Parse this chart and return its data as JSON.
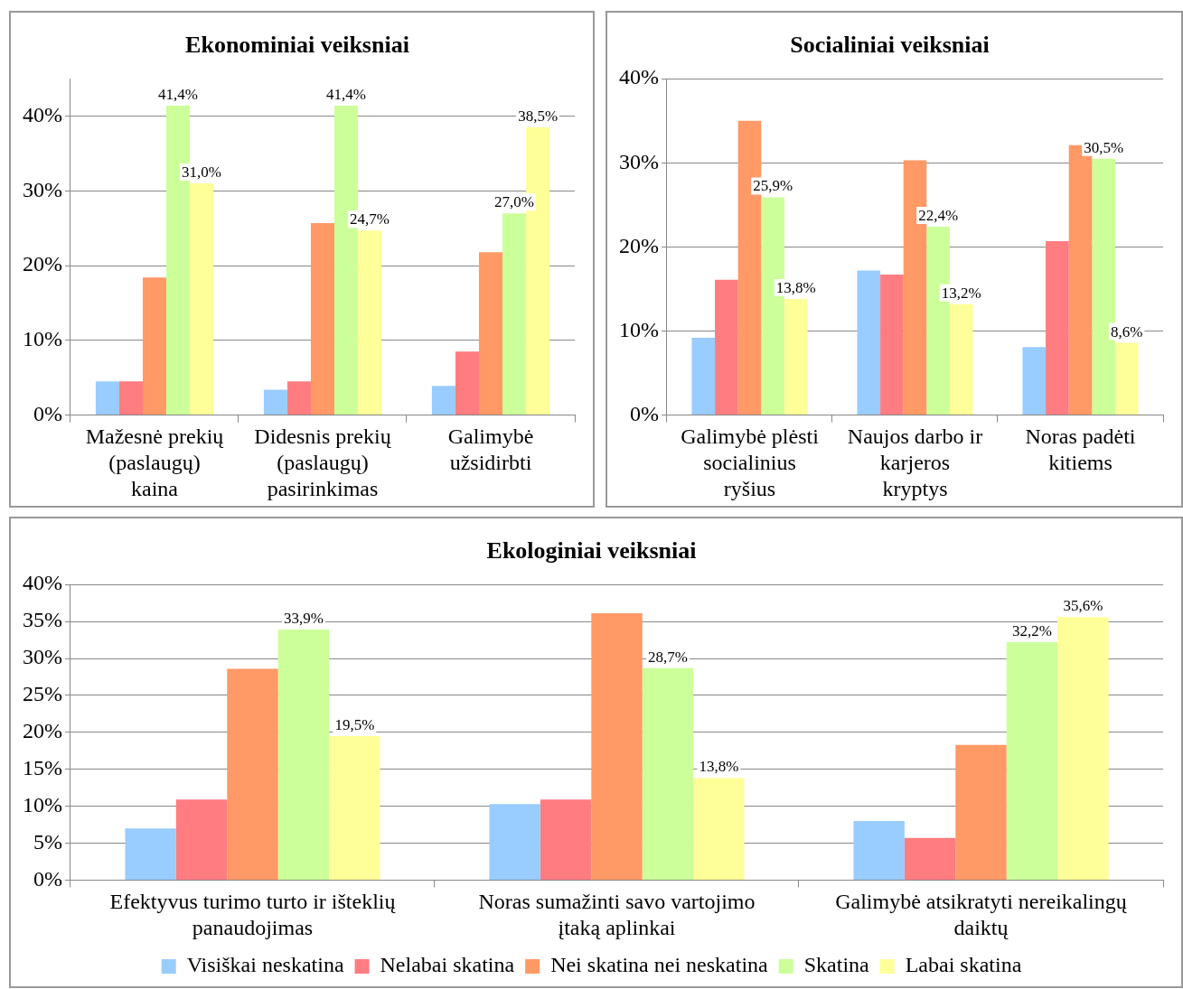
{
  "chart_data": [
    {
      "type": "bar",
      "title": "Ekonominiai veiksniai",
      "categories": [
        "Mažesnė prekių (paslaugų) kaina",
        "Didesnis prekių (paslaugų) pasirinkimas",
        "Galimybė užsidirbti"
      ],
      "series": [
        {
          "color": "#99ccff",
          "values": [
            4.5,
            3.4,
            3.9
          ]
        },
        {
          "color": "#ff7c80",
          "values": [
            4.5,
            4.5,
            8.5
          ]
        },
        {
          "color": "#ff9966",
          "values": [
            18.4,
            25.7,
            21.8
          ]
        },
        {
          "color": "#ccff99",
          "values": [
            41.4,
            41.4,
            27.0
          ],
          "value_labels": [
            "41,4%",
            "41,4%",
            "27,0%"
          ]
        },
        {
          "color": "#ffff99",
          "values": [
            31.0,
            24.7,
            38.5
          ],
          "value_labels": [
            "31,0%",
            "24,7%",
            "38,5%"
          ]
        }
      ],
      "ylim": [
        0,
        45
      ],
      "yticks": [
        {
          "value": 0,
          "label": "0%"
        },
        {
          "value": 10,
          "label": "10%"
        },
        {
          "value": 20,
          "label": "20%"
        },
        {
          "value": 30,
          "label": "30%"
        },
        {
          "value": 40,
          "label": "40%"
        }
      ],
      "grid": "y",
      "legend": false
    },
    {
      "type": "bar",
      "title": "Socialiniai veiksniai",
      "categories": [
        "Galimybė plėsti socialinius ryšius",
        "Naujos darbo ir karjeros kryptys",
        "Noras padėti kitiems"
      ],
      "series": [
        {
          "color": "#99ccff",
          "values": [
            9.2,
            17.2,
            8.1
          ]
        },
        {
          "color": "#ff7c80",
          "values": [
            16.1,
            16.7,
            20.7
          ]
        },
        {
          "color": "#ff9966",
          "values": [
            35.0,
            30.3,
            32.1
          ]
        },
        {
          "color": "#ccff99",
          "values": [
            25.9,
            22.4,
            30.5
          ],
          "value_labels": [
            "25,9%",
            "22,4%",
            "30,5%"
          ]
        },
        {
          "color": "#ffff99",
          "values": [
            13.8,
            13.2,
            8.6
          ],
          "value_labels": [
            "13,8%",
            "13,2%",
            "8,6%"
          ]
        }
      ],
      "ylim": [
        0,
        40
      ],
      "yticks": [
        {
          "value": 0,
          "label": "0%"
        },
        {
          "value": 10,
          "label": "10%"
        },
        {
          "value": 20,
          "label": "20%"
        },
        {
          "value": 30,
          "label": "30%"
        },
        {
          "value": 40,
          "label": "40%"
        }
      ],
      "grid": "y",
      "legend": false
    },
    {
      "type": "bar",
      "title": "Ekologiniai veiksniai",
      "categories": [
        "Efektyvus turimo turto ir išteklių panaudojimas",
        "Noras sumažinti savo vartojimo įtaką aplinkai",
        "Galimybė atsikratyti nereikalingų daiktų"
      ],
      "series": [
        {
          "name": "Visiškai neskatina",
          "color": "#99ccff",
          "values": [
            7.0,
            10.3,
            8.0
          ]
        },
        {
          "name": "Nelabai skatina",
          "color": "#ff7c80",
          "values": [
            10.9,
            10.9,
            5.7
          ]
        },
        {
          "name": "Nei skatina nei neskatina",
          "color": "#ff9966",
          "values": [
            28.6,
            36.1,
            18.3
          ]
        },
        {
          "name": "Skatina",
          "color": "#ccff99",
          "values": [
            33.9,
            28.7,
            32.2
          ],
          "value_labels": [
            "33,9%",
            "28,7%",
            "32,2%"
          ]
        },
        {
          "name": "Labai skatina",
          "color": "#ffff99",
          "values": [
            19.5,
            13.8,
            35.6
          ],
          "value_labels": [
            "19,5%",
            "13,8%",
            "35,6%"
          ]
        }
      ],
      "ylim": [
        0,
        40
      ],
      "yticks": [
        {
          "value": 0,
          "label": "0%"
        },
        {
          "value": 5,
          "label": "5%"
        },
        {
          "value": 10,
          "label": "10%"
        },
        {
          "value": 15,
          "label": "15%"
        },
        {
          "value": 20,
          "label": "20%"
        },
        {
          "value": 25,
          "label": "25%"
        },
        {
          "value": 30,
          "label": "30%"
        },
        {
          "value": 35,
          "label": "35%"
        },
        {
          "value": 40,
          "label": "40%"
        }
      ],
      "grid": "y",
      "legend": "bottom"
    }
  ]
}
